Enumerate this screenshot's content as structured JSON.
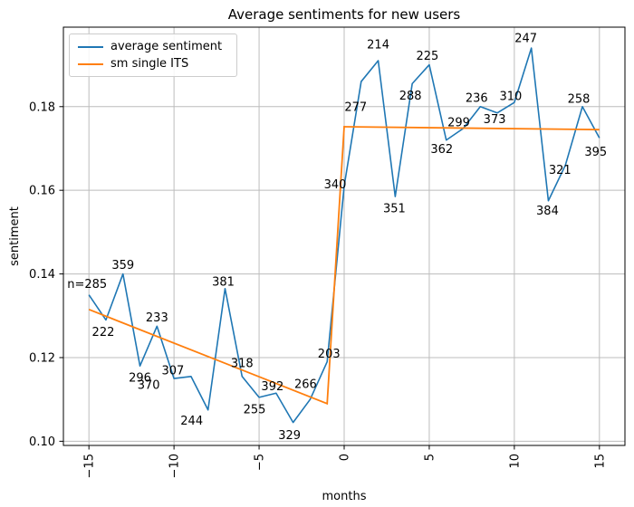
{
  "chart_data": {
    "type": "line",
    "title": "Average sentiments for new users",
    "xlabel": "months",
    "ylabel": "sentiment",
    "xlim": [
      -16.5,
      16.5
    ],
    "ylim": [
      0.099,
      0.199
    ],
    "grid": true,
    "xticks": {
      "values": [
        -15,
        -10,
        -5,
        0,
        5,
        10,
        15
      ],
      "labels": [
        "−15",
        "−10",
        "−5",
        "0",
        "5",
        "10",
        "15"
      ],
      "rotation": 90
    },
    "yticks": {
      "values": [
        0.1,
        0.12,
        0.14,
        0.16,
        0.18
      ],
      "labels": [
        "0.10",
        "0.12",
        "0.14",
        "0.16",
        "0.18"
      ]
    },
    "legend": {
      "position": "upper left",
      "entries": [
        {
          "label": "average sentiment",
          "color": "#1f77b4"
        },
        {
          "label": "sm single ITS",
          "color": "#ff7f0e"
        }
      ]
    },
    "series": [
      {
        "name": "average sentiment",
        "color": "#1f77b4",
        "x": [
          -15,
          -14,
          -13,
          -12,
          -11,
          -10,
          -9,
          -8,
          -7,
          -6,
          -5,
          -4,
          -3,
          -2,
          -1,
          0,
          1,
          2,
          3,
          4,
          5,
          6,
          7,
          8,
          9,
          10,
          11,
          12,
          13,
          14,
          15
        ],
        "y": [
          0.135,
          0.129,
          0.14,
          0.118,
          0.1275,
          0.115,
          0.1155,
          0.1075,
          0.1365,
          0.1155,
          0.1105,
          0.1115,
          0.1045,
          0.11,
          0.119,
          0.161,
          0.186,
          0.191,
          0.1585,
          0.1855,
          0.19,
          0.172,
          0.1748,
          0.18,
          0.1785,
          0.181,
          0.194,
          0.1575,
          0.166,
          0.18,
          0.1725
        ],
        "point_labels": [
          "n=285",
          "222",
          "359",
          "296",
          "233",
          "370",
          "307",
          "244",
          "381",
          "318",
          "255",
          "392",
          "329",
          "266",
          "203",
          "340",
          "277",
          "214",
          "351",
          "288",
          "225",
          "362",
          "299",
          "236",
          "373",
          "310",
          "247",
          "384",
          "321",
          "258",
          "395"
        ],
        "label_offsets": [
          [
            -2,
            -12
          ],
          [
            -3,
            13
          ],
          [
            0,
            -10
          ],
          [
            0,
            13
          ],
          [
            0,
            -10
          ],
          [
            -28,
            7
          ],
          [
            -20,
            -7
          ],
          [
            -18,
            12
          ],
          [
            -2,
            -8
          ],
          [
            0,
            -15
          ],
          [
            -5,
            13
          ],
          [
            -4,
            -8
          ],
          [
            -4,
            14
          ],
          [
            -5,
            -17
          ],
          [
            2,
            -9
          ],
          [
            -10,
            -2
          ],
          [
            -6,
            28
          ],
          [
            0,
            -18
          ],
          [
            -1,
            13
          ],
          [
            -2,
            13
          ],
          [
            -2,
            -10
          ],
          [
            -5,
            10
          ],
          [
            -5,
            -7
          ],
          [
            -4,
            -10
          ],
          [
            -3,
            7
          ],
          [
            -4,
            -7
          ],
          [
            -6,
            -11
          ],
          [
            -1,
            11
          ],
          [
            -6,
            5
          ],
          [
            -4,
            -9
          ],
          [
            -4,
            15
          ]
        ]
      },
      {
        "name": "sm single ITS",
        "color": "#ff7f0e",
        "x": [
          -15,
          -1,
          0,
          15
        ],
        "y": [
          0.1315,
          0.109,
          0.1752,
          0.1745
        ]
      }
    ],
    "colors": {
      "grid": "#bcbcbc",
      "spine": "#000000",
      "background": "#ffffff"
    }
  }
}
